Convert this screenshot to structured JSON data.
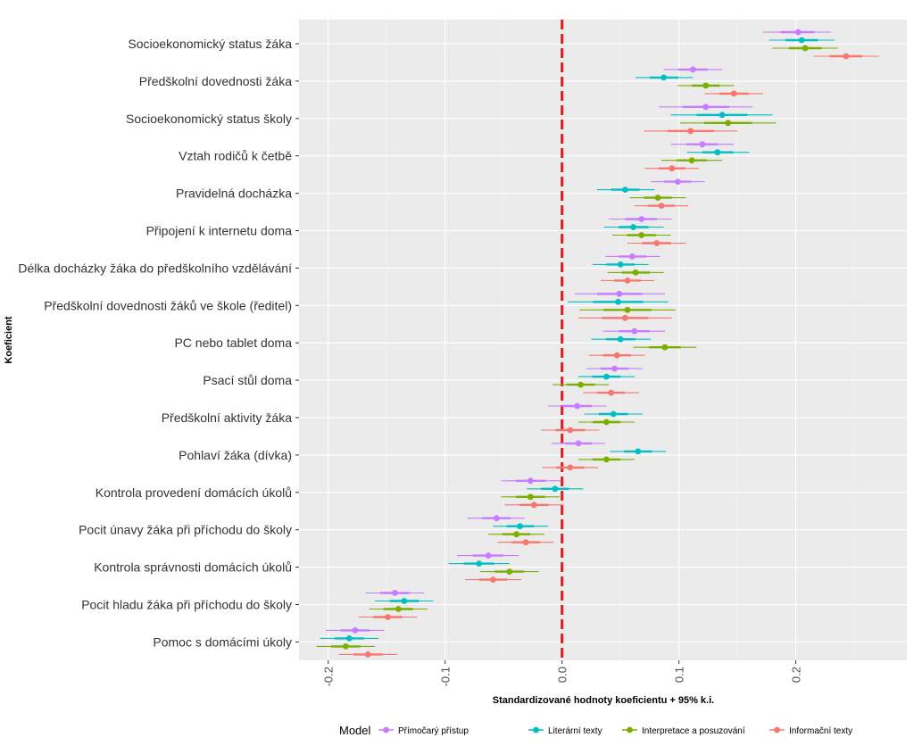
{
  "chart_data": {
    "type": "coefficient-plot",
    "xlabel": "Standardizované hodnoty koeficientu  + 95% k.i.",
    "ylabel": "Koeficient",
    "xlim": [
      -0.225,
      0.295
    ],
    "xticks": [
      -0.2,
      -0.1,
      0.0,
      0.1,
      0.2
    ],
    "xtick_labels": [
      "-0.2",
      "-0.1",
      "0.0",
      "0.1",
      "0.2"
    ],
    "reference_line": 0,
    "reference_color": "#e41a1c",
    "legend": {
      "title": "Model",
      "position": "bottom",
      "entries": [
        {
          "name": "Přímočarý přístup",
          "color": "#c77cff"
        },
        {
          "name": "Literární texty",
          "color": "#00bfc4"
        },
        {
          "name": "Interpretace a posuzování",
          "color": "#7cae00"
        },
        {
          "name": "Informační texty",
          "color": "#f8766d"
        }
      ]
    },
    "categories": [
      "Socioekonomický status žáka",
      "Předškolní dovednosti žáka",
      "Socioekonomický status školy",
      "Vztah rodičů k četbě",
      "Pravidelná docházka",
      "Připojení k internetu doma",
      "Délka docházky žáka do předškolního vzdělávání",
      "Předškolní dovednosti žáků ve škole (ředitel)",
      "PC nebo tablet doma",
      "Psací stůl doma",
      "Předškolní aktivity žáka",
      "Pohlaví žáka (dívka)",
      "Kontrola provedení domácích úkolů",
      "Pocit únavy žáka při příchodu do školy",
      "Kontrola správnosti domácích úkolů",
      "Pocit hladu žáka při příchodu do školy",
      "Pomoc s domácími úkoly"
    ],
    "series": [
      {
        "name": "Přímočarý přístup",
        "estimates": [
          0.202,
          0.112,
          0.123,
          0.12,
          0.099,
          0.068,
          0.06,
          0.049,
          0.062,
          0.045,
          0.013,
          0.014,
          -0.027,
          -0.056,
          -0.063,
          -0.143,
          -0.177
        ],
        "ci_low": [
          0.172,
          0.087,
          0.083,
          0.093,
          0.076,
          0.04,
          0.037,
          0.011,
          0.035,
          0.021,
          -0.012,
          -0.009,
          -0.052,
          -0.081,
          -0.09,
          -0.168,
          -0.202
        ],
        "ci_high": [
          0.23,
          0.137,
          0.163,
          0.147,
          0.122,
          0.094,
          0.084,
          0.088,
          0.088,
          0.069,
          0.038,
          0.037,
          -0.001,
          -0.032,
          -0.037,
          -0.118,
          -0.152
        ]
      },
      {
        "name": "Literární texty",
        "estimates": [
          0.205,
          0.087,
          0.137,
          0.133,
          0.054,
          0.061,
          0.05,
          0.048,
          0.05,
          0.038,
          0.044,
          0.065,
          -0.006,
          -0.036,
          -0.071,
          -0.135,
          -0.182
        ],
        "ci_low": [
          0.177,
          0.063,
          0.093,
          0.107,
          0.03,
          0.036,
          0.026,
          0.005,
          0.025,
          0.014,
          0.019,
          0.041,
          -0.03,
          -0.059,
          -0.097,
          -0.16,
          -0.207
        ],
        "ci_high": [
          0.233,
          0.112,
          0.18,
          0.16,
          0.079,
          0.087,
          0.074,
          0.091,
          0.076,
          0.062,
          0.069,
          0.089,
          0.018,
          -0.012,
          -0.045,
          -0.11,
          -0.157
        ]
      },
      {
        "name": "Interpretace a posuzování",
        "estimates": [
          0.208,
          0.123,
          0.142,
          0.111,
          0.082,
          0.068,
          0.063,
          0.056,
          0.088,
          0.016,
          0.038,
          0.038,
          -0.027,
          -0.039,
          -0.045,
          -0.14,
          -0.185
        ],
        "ci_low": [
          0.18,
          0.099,
          0.101,
          0.085,
          0.058,
          0.043,
          0.039,
          0.015,
          0.061,
          -0.008,
          0.014,
          0.014,
          -0.052,
          -0.063,
          -0.07,
          -0.165,
          -0.21
        ],
        "ci_high": [
          0.236,
          0.147,
          0.183,
          0.137,
          0.106,
          0.093,
          0.087,
          0.097,
          0.115,
          0.04,
          0.062,
          0.062,
          -0.002,
          -0.015,
          -0.02,
          -0.115,
          -0.16
        ]
      },
      {
        "name": "Informační texty",
        "estimates": [
          0.243,
          0.147,
          0.11,
          0.094,
          0.085,
          0.081,
          0.056,
          0.054,
          0.047,
          0.042,
          0.007,
          0.007,
          -0.024,
          -0.031,
          -0.059,
          -0.149,
          -0.166
        ],
        "ci_low": [
          0.215,
          0.122,
          0.07,
          0.071,
          0.062,
          0.056,
          0.033,
          0.014,
          0.023,
          0.018,
          -0.018,
          -0.017,
          -0.049,
          -0.055,
          -0.083,
          -0.174,
          -0.191
        ],
        "ci_high": [
          0.271,
          0.172,
          0.15,
          0.117,
          0.108,
          0.106,
          0.079,
          0.094,
          0.071,
          0.066,
          0.032,
          0.031,
          0.001,
          -0.007,
          -0.035,
          -0.124,
          -0.141
        ]
      }
    ]
  }
}
